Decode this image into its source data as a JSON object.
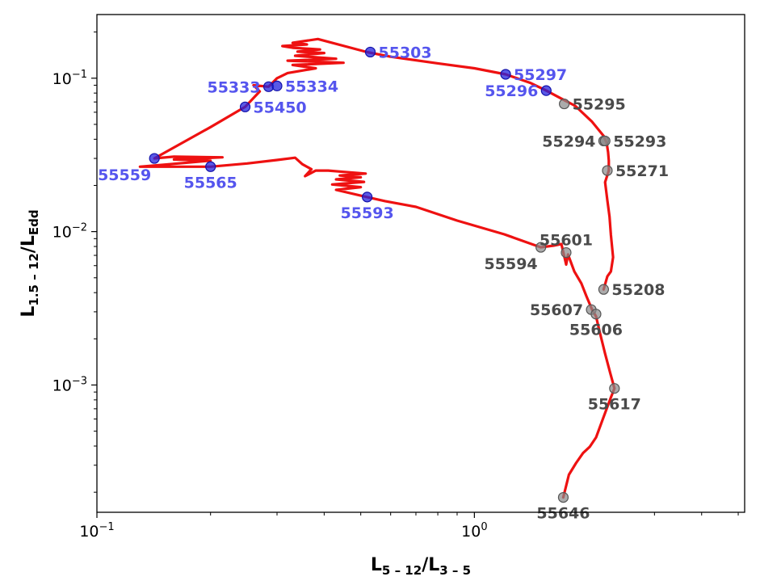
{
  "chart_data": {
    "type": "line",
    "xscale": "log",
    "yscale": "log",
    "xlim": [
      0.1,
      5.2
    ],
    "ylim": [
      0.000148,
      0.26
    ],
    "xlabel": {
      "main": "L",
      "sub": "5 – 12",
      "slash": "/",
      "main2": "L",
      "sub2": "3 – 5"
    },
    "ylabel": {
      "main": "L",
      "sub": "1.5 – 12",
      "slash": "/",
      "main2": "L",
      "sub2": "Edd"
    },
    "x_ticks": [
      {
        "value": 0.1,
        "base": "10",
        "exp": "−1"
      },
      {
        "value": 1.0,
        "base": "10",
        "exp": "0"
      }
    ],
    "y_ticks": [
      {
        "value": 0.001,
        "base": "10",
        "exp": "−3"
      },
      {
        "value": 0.01,
        "base": "10",
        "exp": "−2"
      },
      {
        "value": 0.1,
        "base": "10",
        "exp": "−1"
      }
    ],
    "grid": false,
    "line_color": "#ee1111",
    "track": [
      [
        1.72,
        0.000185
      ],
      [
        1.78,
        0.00026
      ],
      [
        1.86,
        0.00031
      ],
      [
        1.94,
        0.00036
      ],
      [
        2.02,
        0.000395
      ],
      [
        2.1,
        0.000455
      ],
      [
        2.2,
        0.00062
      ],
      [
        2.3,
        0.00083
      ],
      [
        2.35,
        0.00095
      ],
      [
        2.29,
        0.0012
      ],
      [
        2.22,
        0.0016
      ],
      [
        2.15,
        0.0022
      ],
      [
        2.1,
        0.0028
      ],
      [
        2.05,
        0.0031
      ],
      [
        1.98,
        0.0038
      ],
      [
        1.92,
        0.0046
      ],
      [
        1.84,
        0.0055
      ],
      [
        1.77,
        0.0071
      ],
      [
        1.75,
        0.0061
      ],
      [
        1.7,
        0.0083
      ],
      [
        1.62,
        0.0081
      ],
      [
        1.5,
        0.0079
      ],
      [
        1.2,
        0.0096
      ],
      [
        0.9,
        0.0118
      ],
      [
        0.7,
        0.0145
      ],
      [
        0.58,
        0.0158
      ],
      [
        0.52,
        0.0168
      ],
      [
        0.43,
        0.0187
      ],
      [
        0.5,
        0.0195
      ],
      [
        0.42,
        0.0203
      ],
      [
        0.51,
        0.0211
      ],
      [
        0.43,
        0.0219
      ],
      [
        0.5,
        0.0226
      ],
      [
        0.44,
        0.0232
      ],
      [
        0.515,
        0.0239
      ],
      [
        0.45,
        0.0245
      ],
      [
        0.41,
        0.025
      ],
      [
        0.38,
        0.025
      ],
      [
        0.356,
        0.023
      ],
      [
        0.37,
        0.0255
      ],
      [
        0.35,
        0.0275
      ],
      [
        0.335,
        0.0303
      ],
      [
        0.3,
        0.0293
      ],
      [
        0.25,
        0.0278
      ],
      [
        0.2,
        0.0265
      ],
      [
        0.13,
        0.0265
      ],
      [
        0.175,
        0.0282
      ],
      [
        0.2,
        0.029
      ],
      [
        0.16,
        0.0295
      ],
      [
        0.215,
        0.0305
      ],
      [
        0.16,
        0.0308
      ],
      [
        0.142,
        0.03
      ],
      [
        0.2,
        0.048
      ],
      [
        0.247,
        0.065
      ],
      [
        0.27,
        0.082
      ],
      [
        0.26,
        0.09
      ],
      [
        0.285,
        0.088
      ],
      [
        0.3,
        0.1
      ],
      [
        0.32,
        0.108
      ],
      [
        0.38,
        0.116
      ],
      [
        0.33,
        0.122
      ],
      [
        0.45,
        0.126
      ],
      [
        0.32,
        0.13
      ],
      [
        0.43,
        0.134
      ],
      [
        0.335,
        0.14
      ],
      [
        0.4,
        0.146
      ],
      [
        0.34,
        0.149
      ],
      [
        0.39,
        0.154
      ],
      [
        0.33,
        0.158
      ],
      [
        0.31,
        0.162
      ],
      [
        0.36,
        0.166
      ],
      [
        0.33,
        0.17
      ],
      [
        0.385,
        0.18
      ],
      [
        0.52,
        0.148
      ],
      [
        0.6,
        0.138
      ],
      [
        0.8,
        0.125
      ],
      [
        1.0,
        0.116
      ],
      [
        1.21,
        0.106
      ],
      [
        1.41,
        0.093
      ],
      [
        1.55,
        0.083
      ],
      [
        1.73,
        0.072
      ],
      [
        1.85,
        0.066
      ],
      [
        2.05,
        0.052
      ],
      [
        2.2,
        0.042
      ],
      [
        2.24,
        0.038
      ],
      [
        2.26,
        0.033
      ],
      [
        2.27,
        0.029
      ],
      [
        2.27,
        0.025
      ],
      [
        2.22,
        0.021
      ],
      [
        2.25,
        0.016
      ],
      [
        2.28,
        0.0125
      ],
      [
        2.3,
        0.0095
      ],
      [
        2.33,
        0.0068
      ],
      [
        2.3,
        0.0055
      ],
      [
        2.25,
        0.0051
      ],
      [
        2.2,
        0.0042
      ]
    ],
    "points": [
      {
        "label": "55303",
        "x": 0.53,
        "y": 0.148,
        "color": "blue",
        "label_pos": "right"
      },
      {
        "label": "55297",
        "x": 1.21,
        "y": 0.106,
        "color": "blue",
        "label_pos": "right"
      },
      {
        "label": "55296",
        "x": 1.55,
        "y": 0.083,
        "color": "blue",
        "label_pos": "left"
      },
      {
        "label": "55333",
        "x": 0.285,
        "y": 0.088,
        "color": "blue",
        "label_pos": "left"
      },
      {
        "label": "55334",
        "x": 0.3,
        "y": 0.089,
        "color": "blue",
        "label_pos": "right"
      },
      {
        "label": "55450",
        "x": 0.247,
        "y": 0.065,
        "color": "blue",
        "label_pos": "right"
      },
      {
        "label": "55559",
        "x": 0.142,
        "y": 0.03,
        "color": "blue",
        "label_pos": "below-left"
      },
      {
        "label": "55565",
        "x": 0.2,
        "y": 0.0265,
        "color": "blue",
        "label_pos": "below"
      },
      {
        "label": "55593",
        "x": 0.52,
        "y": 0.0168,
        "color": "blue",
        "label_pos": "below"
      },
      {
        "label": "55295",
        "x": 1.73,
        "y": 0.068,
        "color": "gray",
        "label_pos": "right"
      },
      {
        "label": "55294",
        "x": 2.2,
        "y": 0.039,
        "color": "gray",
        "label_pos": "left"
      },
      {
        "label": "55293",
        "x": 2.22,
        "y": 0.039,
        "color": "gray",
        "label_pos": "right"
      },
      {
        "label": "55271",
        "x": 2.25,
        "y": 0.025,
        "color": "gray",
        "label_pos": "right"
      },
      {
        "label": "55601",
        "x": 1.75,
        "y": 0.0073,
        "color": "gray",
        "label_pos": "above"
      },
      {
        "label": "55594",
        "x": 1.5,
        "y": 0.0079,
        "color": "gray",
        "label_pos": "below-left"
      },
      {
        "label": "55208",
        "x": 2.2,
        "y": 0.0042,
        "color": "gray",
        "label_pos": "right"
      },
      {
        "label": "55607",
        "x": 2.04,
        "y": 0.0031,
        "color": "gray",
        "label_pos": "left"
      },
      {
        "label": "55606",
        "x": 2.1,
        "y": 0.0029,
        "color": "gray",
        "label_pos": "below"
      },
      {
        "label": "55617",
        "x": 2.35,
        "y": 0.00095,
        "color": "gray",
        "label_pos": "below"
      },
      {
        "label": "55646",
        "x": 1.72,
        "y": 0.000185,
        "color": "gray",
        "label_pos": "below"
      }
    ],
    "colors": {
      "blue_marker": "#2222dd",
      "blue_label": "#5555ee",
      "gray_marker": "#888888",
      "gray_label": "#4a4a4a",
      "axes": "#000000"
    }
  }
}
